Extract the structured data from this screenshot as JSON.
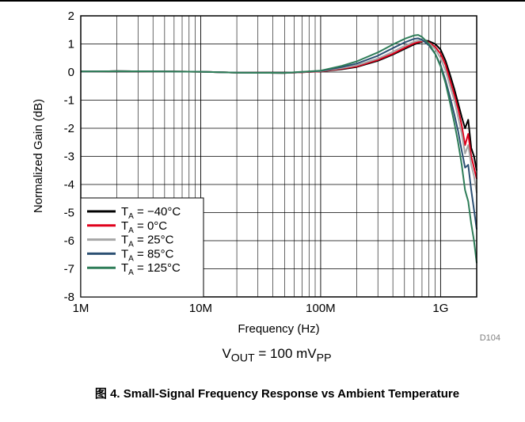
{
  "condition_text": "V_OUT = 100 mV_PP",
  "condition": {
    "prefix": "V",
    "sub1": "OUT",
    "middle": " = 100 mV",
    "sub2": "PP"
  },
  "figure_id": "D104",
  "figure_caption": "图 4. Small-Signal Frequency Response vs Ambient Temperature",
  "chart_data": {
    "type": "line",
    "title": "",
    "xlabel": "Frequency (Hz)",
    "ylabel": "Normalized Gain (dB)",
    "x_scale": "log",
    "xlim": [
      1000000,
      2000000000
    ],
    "ylim": [
      -8,
      2
    ],
    "grid": true,
    "legend_position": "bottom-left",
    "x_ticks": [
      1000000,
      10000000,
      100000000,
      1000000000
    ],
    "x_tick_labels": [
      "1M",
      "10M",
      "100M",
      "1G"
    ],
    "y_ticks": [
      2,
      1,
      0,
      -1,
      -2,
      -3,
      -4,
      -5,
      -6,
      -7,
      -8
    ],
    "y_tick_labels": [
      "2",
      "1",
      "0",
      "-1",
      "-2",
      "-3",
      "-4",
      "-5",
      "-6",
      "-7",
      "-8"
    ],
    "series": [
      {
        "name": "T_A = −40°C",
        "legend_sub": "A",
        "legend_value": " = −40°C",
        "color": "#000000",
        "points": [
          [
            1000000.0,
            0.02
          ],
          [
            2000000.0,
            0.03
          ],
          [
            5000000.0,
            0.02
          ],
          [
            10000000.0,
            0.01
          ],
          [
            20000000.0,
            -0.02
          ],
          [
            50000000.0,
            -0.03
          ],
          [
            100000000.0,
            0.02
          ],
          [
            150000000.0,
            0.1
          ],
          [
            200000000.0,
            0.18
          ],
          [
            300000000.0,
            0.4
          ],
          [
            400000000.0,
            0.62
          ],
          [
            500000000.0,
            0.82
          ],
          [
            600000000.0,
            0.98
          ],
          [
            700000000.0,
            1.08
          ],
          [
            750000000.0,
            1.12
          ],
          [
            800000000.0,
            1.1
          ],
          [
            900000000.0,
            1.0
          ],
          [
            1000000000.0,
            0.8
          ],
          [
            1100000000.0,
            0.4
          ],
          [
            1200000000.0,
            -0.1
          ],
          [
            1300000000.0,
            -0.6
          ],
          [
            1400000000.0,
            -1.1
          ],
          [
            1500000000.0,
            -1.6
          ],
          [
            1600000000.0,
            -2.0
          ],
          [
            1700000000.0,
            -1.7
          ],
          [
            1800000000.0,
            -2.7
          ],
          [
            1900000000.0,
            -3.0
          ],
          [
            2000000000.0,
            -3.5
          ]
        ]
      },
      {
        "name": "T_A = 0°C",
        "legend_sub": "A",
        "legend_value": " = 0°C",
        "color": "#e0001b",
        "points": [
          [
            1000000.0,
            0.02
          ],
          [
            2000000.0,
            0.03
          ],
          [
            5000000.0,
            0.02
          ],
          [
            10000000.0,
            0.01
          ],
          [
            20000000.0,
            -0.02
          ],
          [
            50000000.0,
            -0.03
          ],
          [
            100000000.0,
            0.02
          ],
          [
            150000000.0,
            0.12
          ],
          [
            200000000.0,
            0.2
          ],
          [
            300000000.0,
            0.43
          ],
          [
            400000000.0,
            0.65
          ],
          [
            500000000.0,
            0.86
          ],
          [
            600000000.0,
            1.02
          ],
          [
            700000000.0,
            1.1
          ],
          [
            750000000.0,
            1.1
          ],
          [
            800000000.0,
            1.05
          ],
          [
            900000000.0,
            0.9
          ],
          [
            1000000000.0,
            0.65
          ],
          [
            1100000000.0,
            0.25
          ],
          [
            1200000000.0,
            -0.3
          ],
          [
            1300000000.0,
            -0.8
          ],
          [
            1400000000.0,
            -1.3
          ],
          [
            1500000000.0,
            -1.9
          ],
          [
            1600000000.0,
            -2.6
          ],
          [
            1700000000.0,
            -2.2
          ],
          [
            1800000000.0,
            -3.0
          ],
          [
            1900000000.0,
            -3.4
          ],
          [
            2000000000.0,
            -3.8
          ]
        ]
      },
      {
        "name": "T_A = 25°C",
        "legend_sub": "A",
        "legend_value": " = 25°C",
        "color": "#a6a6a6",
        "points": [
          [
            1000000.0,
            0.02
          ],
          [
            2000000.0,
            0.03
          ],
          [
            5000000.0,
            0.02
          ],
          [
            10000000.0,
            0.01
          ],
          [
            20000000.0,
            -0.02
          ],
          [
            50000000.0,
            -0.03
          ],
          [
            100000000.0,
            0.03
          ],
          [
            150000000.0,
            0.14
          ],
          [
            200000000.0,
            0.24
          ],
          [
            300000000.0,
            0.48
          ],
          [
            400000000.0,
            0.72
          ],
          [
            500000000.0,
            0.93
          ],
          [
            600000000.0,
            1.08
          ],
          [
            650000000.0,
            1.12
          ],
          [
            700000000.0,
            1.12
          ],
          [
            800000000.0,
            1.02
          ],
          [
            900000000.0,
            0.82
          ],
          [
            1000000000.0,
            0.5
          ],
          [
            1100000000.0,
            0.05
          ],
          [
            1200000000.0,
            -0.5
          ],
          [
            1300000000.0,
            -1.0
          ],
          [
            1400000000.0,
            -1.6
          ],
          [
            1500000000.0,
            -2.2
          ],
          [
            1600000000.0,
            -2.9
          ],
          [
            1700000000.0,
            -2.6
          ],
          [
            1800000000.0,
            -3.3
          ],
          [
            1900000000.0,
            -3.7
          ],
          [
            2000000000.0,
            -4.3
          ]
        ]
      },
      {
        "name": "T_A = 85°C",
        "legend_sub": "A",
        "legend_value": " = 85°C",
        "color": "#2c5073",
        "points": [
          [
            1000000.0,
            0.02
          ],
          [
            2000000.0,
            0.03
          ],
          [
            5000000.0,
            0.02
          ],
          [
            10000000.0,
            0.01
          ],
          [
            20000000.0,
            -0.02
          ],
          [
            50000000.0,
            -0.03
          ],
          [
            100000000.0,
            0.04
          ],
          [
            150000000.0,
            0.18
          ],
          [
            200000000.0,
            0.3
          ],
          [
            300000000.0,
            0.58
          ],
          [
            400000000.0,
            0.85
          ],
          [
            500000000.0,
            1.05
          ],
          [
            600000000.0,
            1.18
          ],
          [
            650000000.0,
            1.2
          ],
          [
            700000000.0,
            1.15
          ],
          [
            800000000.0,
            0.95
          ],
          [
            900000000.0,
            0.65
          ],
          [
            1000000000.0,
            0.25
          ],
          [
            1100000000.0,
            -0.3
          ],
          [
            1200000000.0,
            -0.9
          ],
          [
            1300000000.0,
            -1.5
          ],
          [
            1400000000.0,
            -2.1
          ],
          [
            1500000000.0,
            -2.8
          ],
          [
            1600000000.0,
            -3.4
          ],
          [
            1700000000.0,
            -3.3
          ],
          [
            1800000000.0,
            -4.2
          ],
          [
            1900000000.0,
            -4.9
          ],
          [
            2000000000.0,
            -5.6
          ]
        ]
      },
      {
        "name": "T_A = 125°C",
        "legend_sub": "A",
        "legend_value": " = 125°C",
        "color": "#2e7d58",
        "points": [
          [
            1000000.0,
            0.02
          ],
          [
            2000000.0,
            0.03
          ],
          [
            5000000.0,
            0.02
          ],
          [
            10000000.0,
            0.01
          ],
          [
            20000000.0,
            -0.02
          ],
          [
            50000000.0,
            -0.03
          ],
          [
            100000000.0,
            0.05
          ],
          [
            150000000.0,
            0.22
          ],
          [
            200000000.0,
            0.38
          ],
          [
            300000000.0,
            0.7
          ],
          [
            400000000.0,
            0.98
          ],
          [
            500000000.0,
            1.18
          ],
          [
            600000000.0,
            1.3
          ],
          [
            650000000.0,
            1.32
          ],
          [
            700000000.0,
            1.25
          ],
          [
            800000000.0,
            1.0
          ],
          [
            900000000.0,
            0.65
          ],
          [
            1000000000.0,
            0.2
          ],
          [
            1100000000.0,
            -0.4
          ],
          [
            1200000000.0,
            -1.1
          ],
          [
            1300000000.0,
            -1.8
          ],
          [
            1400000000.0,
            -2.5
          ],
          [
            1500000000.0,
            -3.3
          ],
          [
            1600000000.0,
            -4.2
          ],
          [
            1700000000.0,
            -4.6
          ],
          [
            1800000000.0,
            -5.4
          ],
          [
            1900000000.0,
            -6.0
          ],
          [
            2000000000.0,
            -6.8
          ]
        ]
      }
    ]
  }
}
